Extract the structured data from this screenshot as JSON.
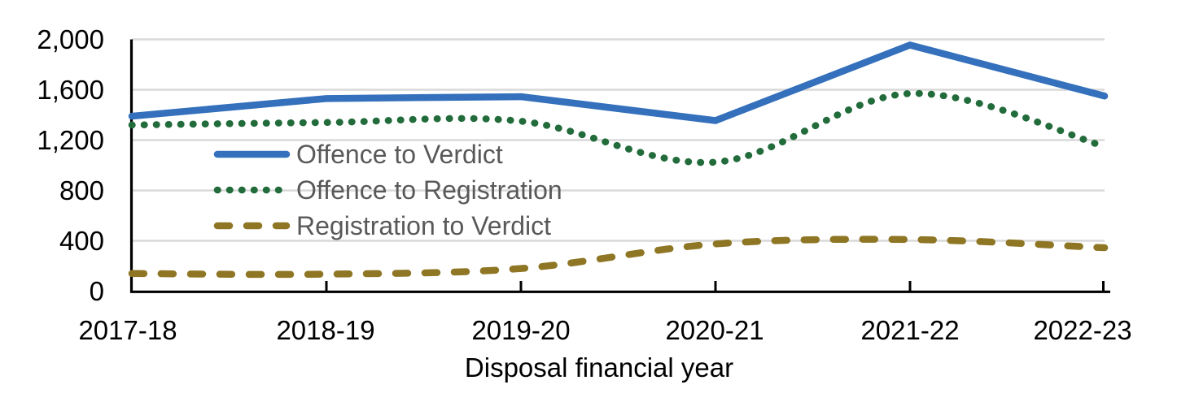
{
  "chart_data": {
    "type": "line",
    "title": "",
    "xlabel": "Disposal financial year",
    "ylabel": "",
    "categories": [
      "2017-18",
      "2018-19",
      "2019-20",
      "2020-21",
      "2021-22",
      "2022-23"
    ],
    "series": [
      {
        "name": "Offence to Verdict",
        "style": "solid",
        "smooth": false,
        "color": "#3470BC",
        "values": [
          1390,
          1530,
          1545,
          1355,
          1955,
          1550
        ]
      },
      {
        "name": "Offence to Registration",
        "style": "dotted",
        "smooth": true,
        "color": "#226B3B",
        "values": [
          1320,
          1340,
          1350,
          1025,
          1570,
          1150
        ]
      },
      {
        "name": "Registration to Verdict",
        "style": "dashed",
        "smooth": true,
        "color": "#8E7624",
        "values": [
          140,
          135,
          180,
          375,
          410,
          345
        ]
      }
    ],
    "ylim": [
      0,
      2000
    ],
    "yticks": [
      0,
      400,
      800,
      1200,
      1600,
      2000
    ],
    "ytick_labels": [
      "0",
      "400",
      "800",
      "1,200",
      "1,600",
      "2,000"
    ],
    "grid": "horizontal",
    "legend_position": "inside-upper-left"
  },
  "colors": {
    "grid": "#D9D9D9",
    "axis": "#000000",
    "tick_text": "#000000",
    "legend_text": "#595959",
    "background": "#FFFFFF"
  }
}
